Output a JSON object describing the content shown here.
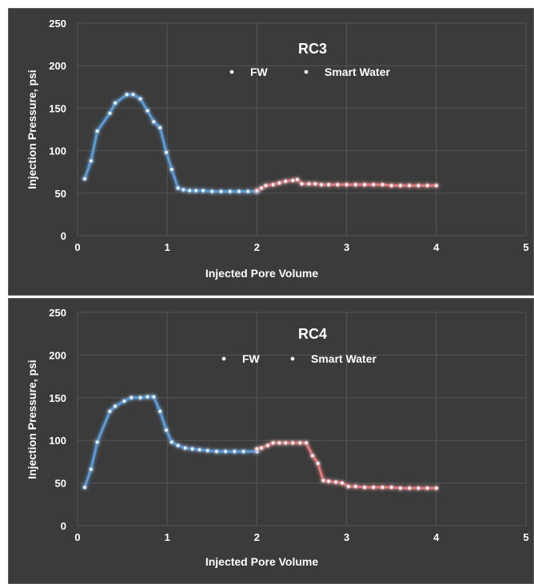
{
  "chart_data": [
    {
      "type": "line",
      "title": "RC3",
      "xlabel": "Injected Pore Volume",
      "ylabel": "Injection Pressure, psi",
      "xlim": [
        0,
        5
      ],
      "ylim": [
        0,
        250
      ],
      "xticks": [
        "0",
        "1",
        "2",
        "3",
        "4",
        "5"
      ],
      "yticks": [
        "0",
        "50",
        "100",
        "150",
        "200",
        "250"
      ],
      "grid": true,
      "legend": "top-center",
      "series": [
        {
          "name": "FW",
          "color": "#5b9bd5",
          "x": [
            0.08,
            0.15,
            0.22,
            0.36,
            0.42,
            0.55,
            0.62,
            0.7,
            0.78,
            0.85,
            0.92,
            0.99,
            1.05,
            1.12,
            1.18,
            1.25,
            1.32,
            1.4,
            1.5,
            1.6,
            1.7,
            1.8,
            1.9,
            2.0
          ],
          "y": [
            67,
            88,
            123,
            144,
            156,
            166,
            166,
            161,
            147,
            134,
            127,
            98,
            78,
            56,
            54,
            53,
            53,
            53,
            52,
            52,
            52,
            52,
            52,
            52
          ]
        },
        {
          "name": "Smart Water",
          "color": "#e07b7b",
          "x": [
            2.0,
            2.05,
            2.1,
            2.18,
            2.25,
            2.32,
            2.4,
            2.45,
            2.5,
            2.58,
            2.65,
            2.72,
            2.8,
            2.9,
            3.0,
            3.1,
            3.2,
            3.3,
            3.4,
            3.5,
            3.6,
            3.7,
            3.8,
            3.9,
            4.0
          ],
          "y": [
            53,
            56,
            59,
            60,
            62,
            64,
            65,
            66,
            61,
            61,
            61,
            60,
            60,
            60,
            60,
            60,
            60,
            60,
            60,
            59,
            59,
            59,
            59,
            59,
            59
          ]
        }
      ]
    },
    {
      "type": "line",
      "title": "RC4",
      "xlabel": "Injected Pore Volume",
      "ylabel": "Injection Pressure, psi",
      "xlim": [
        0,
        5
      ],
      "ylim": [
        0,
        250
      ],
      "xticks": [
        "0",
        "1",
        "2",
        "3",
        "4",
        "5"
      ],
      "yticks": [
        "0",
        "50",
        "100",
        "150",
        "200",
        "250"
      ],
      "grid": true,
      "legend": "top-center",
      "series": [
        {
          "name": "FW",
          "color": "#5b9bd5",
          "x": [
            0.08,
            0.15,
            0.22,
            0.36,
            0.42,
            0.52,
            0.6,
            0.7,
            0.78,
            0.85,
            0.92,
            0.99,
            1.05,
            1.12,
            1.2,
            1.28,
            1.36,
            1.45,
            1.55,
            1.65,
            1.75,
            1.85,
            2.0
          ],
          "y": [
            45,
            66,
            98,
            134,
            140,
            146,
            150,
            150,
            151,
            151,
            134,
            112,
            98,
            94,
            91,
            90,
            89,
            88,
            87,
            87,
            87,
            87,
            87
          ]
        },
        {
          "name": "Smart Water",
          "color": "#e07b7b",
          "x": [
            2.0,
            2.05,
            2.12,
            2.18,
            2.25,
            2.32,
            2.4,
            2.48,
            2.55,
            2.62,
            2.68,
            2.74,
            2.8,
            2.88,
            2.95,
            3.02,
            3.1,
            3.2,
            3.3,
            3.4,
            3.5,
            3.6,
            3.7,
            3.8,
            3.9,
            4.0
          ],
          "y": [
            90,
            91,
            94,
            97,
            97,
            97,
            97,
            97,
            97,
            82,
            73,
            53,
            52,
            51,
            50,
            46,
            46,
            45,
            45,
            45,
            45,
            44,
            44,
            44,
            44,
            44
          ]
        }
      ]
    }
  ]
}
